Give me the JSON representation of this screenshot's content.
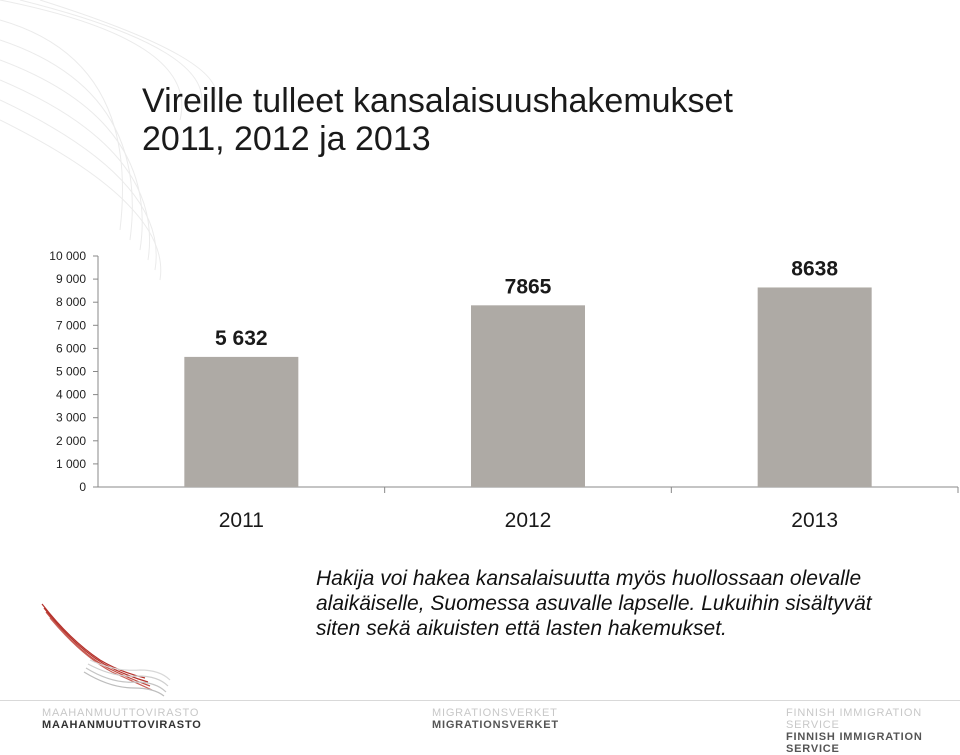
{
  "title": {
    "line1": "Vireille tulleet kansalaisuushakemukset",
    "line2": "2011, 2012 ja 2013"
  },
  "chart_data": {
    "type": "bar",
    "categories": [
      "2011",
      "2012",
      "2013"
    ],
    "values": [
      5632,
      7865,
      8638
    ],
    "data_labels": [
      "5 632",
      "7865",
      "8638"
    ],
    "ylim": [
      0,
      10000
    ],
    "yticks": [
      0,
      1000,
      2000,
      3000,
      4000,
      5000,
      6000,
      7000,
      8000,
      9000,
      10000
    ],
    "ytick_labels": [
      "0",
      "1 000",
      "2 000",
      "3 000",
      "4 000",
      "5 000",
      "6 000",
      "7 000",
      "8 000",
      "9 000",
      "10 000"
    ],
    "grid": false,
    "legend": "none",
    "bar_color": "#aeaaa5",
    "xlabel": "",
    "ylabel": ""
  },
  "note": {
    "text": "Hakija voi hakea kansalaisuutta myös huollossaan olevalle alaikäiselle, Suomessa asuvalle lapselle. Lukuihin sisältyvät siten sekä aikuisten että lasten hakemukset."
  },
  "footer": {
    "left_ghost": "MAAHANMUUTTOVIRASTO",
    "left_main": "MAAHANMUUTTOVIRASTO",
    "mid_ghost": "MIGRATIONSVERKET",
    "mid_main": "MIGRATIONSVERKET",
    "right_ghost": "FINNISH IMMIGRATION SERVICE",
    "right_main": "FINNISH IMMIGRATION SERVICE"
  },
  "icons": {
    "logo": "swallow-logo-icon"
  },
  "colors": {
    "bar": "#aeaaa5",
    "logo_red": "#b5322c"
  }
}
